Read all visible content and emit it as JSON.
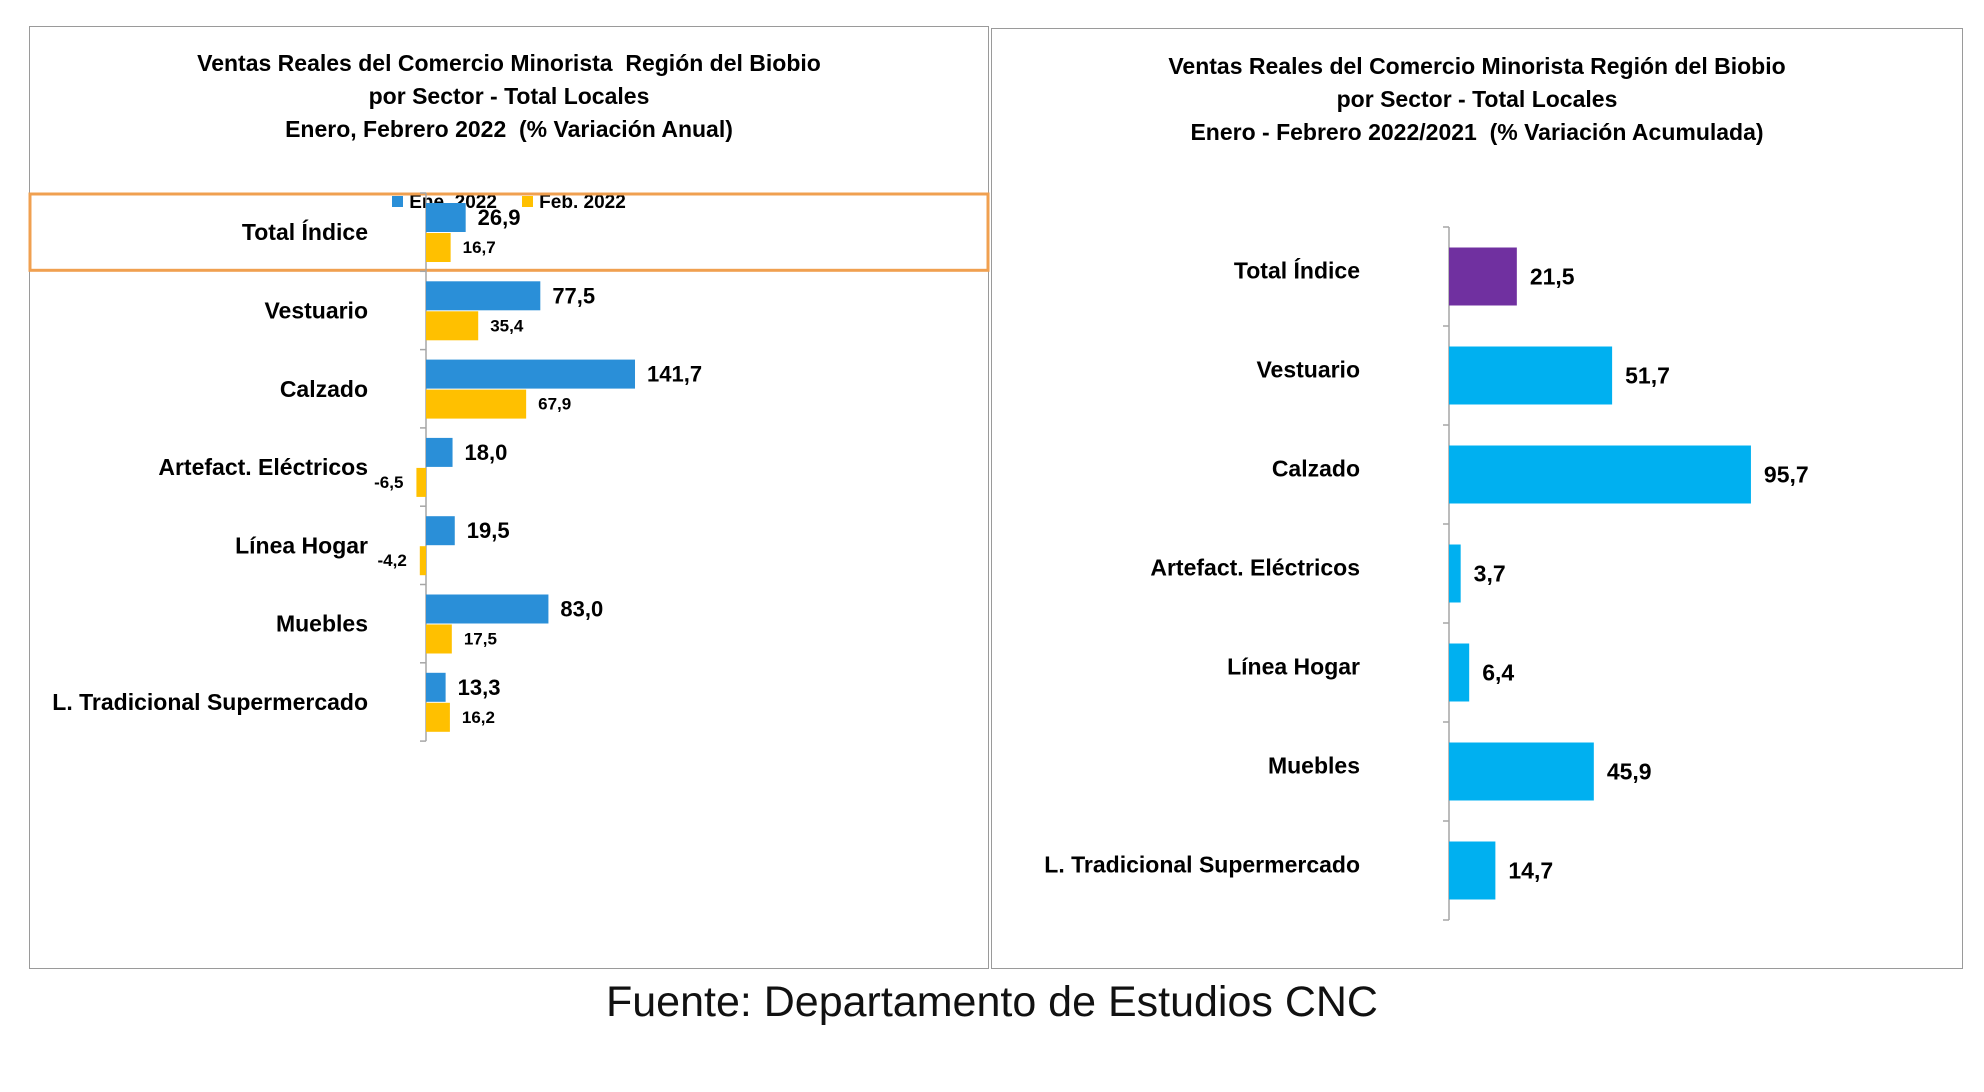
{
  "chart_data": [
    {
      "type": "bar",
      "orientation": "horizontal",
      "title": [
        "Ventas Reales del Comercio Minorista  Región del Biobio",
        "por Sector - Total Locales",
        "Enero, Febrero 2022  (% Variación Anual)"
      ],
      "categories": [
        "Total Índice",
        "Vestuario",
        "Calzado",
        "Artefact. Eléctricos",
        "Línea Hogar",
        "Muebles",
        "L. Tradicional Supermercado"
      ],
      "series": [
        {
          "name": "Ene. 2022",
          "color": "#2a8fd8",
          "values": [
            26.9,
            77.5,
            141.7,
            18.0,
            19.5,
            83.0,
            13.3
          ],
          "labels": [
            "26,9",
            "77,5",
            "141,7",
            "18,0",
            "19,5",
            "83,0",
            "13,3"
          ]
        },
        {
          "name": "Feb. 2022",
          "color": "#ffc000",
          "values": [
            16.7,
            35.4,
            67.9,
            -6.5,
            -4.2,
            17.5,
            16.2
          ],
          "labels": [
            "16,7",
            "35,4",
            "67,9",
            "-6,5",
            "-4,2",
            "17,5",
            "16,2"
          ]
        }
      ],
      "highlight_category": "Total Índice",
      "highlight_color": "#f0a050",
      "legend_position": "top"
    },
    {
      "type": "bar",
      "orientation": "horizontal",
      "title": [
        "Ventas Reales del Comercio Minorista Región del Biobio",
        "por Sector - Total Locales",
        "Enero - Febrero 2022/2021  (% Variación Acumulada)"
      ],
      "categories": [
        "Total Índice",
        "Vestuario",
        "Calzado",
        "Artefact. Eléctricos",
        "Línea Hogar",
        "Muebles",
        "L. Tradicional Supermercado"
      ],
      "series": [
        {
          "name": "",
          "values": [
            21.5,
            51.7,
            95.7,
            3.7,
            6.4,
            45.9,
            14.7
          ],
          "labels": [
            "21,5",
            "51,7",
            "95,7",
            "3,7",
            "6,4",
            "45,9",
            "14,7"
          ],
          "colors": [
            "#7030a0",
            "#00b0f0",
            "#00b0f0",
            "#00b0f0",
            "#00b0f0",
            "#00b0f0",
            "#00b0f0"
          ]
        }
      ]
    }
  ],
  "source": "Fuente: Departamento de Estudios CNC"
}
